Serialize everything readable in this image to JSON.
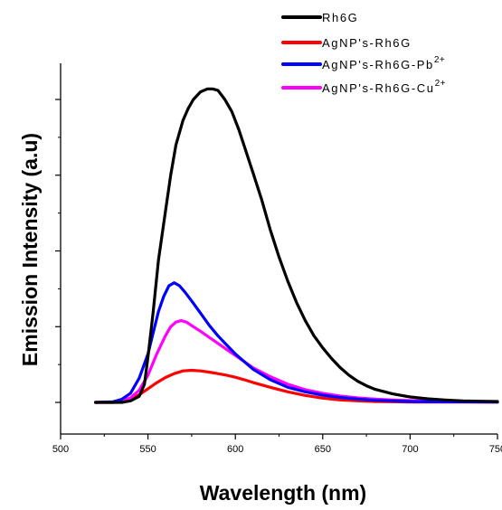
{
  "chart_data": {
    "type": "line",
    "title": "",
    "xlabel": "Wavelength (nm)",
    "ylabel": "Emission Intensity (a.u)",
    "xlim": [
      500,
      750
    ],
    "ylim": [
      0,
      1.05
    ],
    "xticks": [
      500,
      550,
      600,
      650,
      700,
      750
    ],
    "xtick_labels": [
      "500",
      "550",
      "600",
      "650",
      "700",
      "750"
    ],
    "yticks": [
      0,
      0.25,
      0.5,
      0.75,
      1.0
    ],
    "ytick_labels_visible": false,
    "grid": false,
    "legend_position": "top-right",
    "series": [
      {
        "name": "Rh6G",
        "color": "#000000",
        "x": [
          520,
          530,
          535,
          540,
          545,
          548,
          550,
          553,
          556,
          560,
          563,
          566,
          570,
          573,
          576,
          580,
          584,
          587,
          590,
          594,
          598,
          602,
          606,
          610,
          615,
          620,
          625,
          630,
          635,
          640,
          645,
          650,
          655,
          660,
          665,
          670,
          675,
          680,
          690,
          700,
          710,
          720,
          730,
          740,
          750
        ],
        "y": [
          0.0,
          0.0,
          0.0,
          0.005,
          0.02,
          0.06,
          0.15,
          0.3,
          0.47,
          0.63,
          0.75,
          0.85,
          0.93,
          0.97,
          1.0,
          1.025,
          1.035,
          1.035,
          1.03,
          1.0,
          0.96,
          0.9,
          0.83,
          0.76,
          0.67,
          0.57,
          0.48,
          0.4,
          0.33,
          0.27,
          0.22,
          0.18,
          0.145,
          0.115,
          0.09,
          0.07,
          0.055,
          0.043,
          0.028,
          0.018,
          0.012,
          0.008,
          0.005,
          0.004,
          0.003
        ]
      },
      {
        "name": "AgNP's-Rh6G",
        "color": "#ff0000",
        "x": [
          520,
          530,
          535,
          540,
          545,
          550,
          555,
          560,
          565,
          570,
          575,
          580,
          585,
          590,
          595,
          600,
          605,
          610,
          620,
          630,
          640,
          650,
          660,
          670,
          680,
          690,
          700,
          720,
          750
        ],
        "y": [
          0.0,
          0.0,
          0.003,
          0.01,
          0.025,
          0.045,
          0.065,
          0.082,
          0.095,
          0.104,
          0.106,
          0.104,
          0.1,
          0.095,
          0.09,
          0.083,
          0.075,
          0.066,
          0.05,
          0.035,
          0.023,
          0.014,
          0.008,
          0.005,
          0.003,
          0.002,
          0.001,
          0.001,
          0.001
        ]
      },
      {
        "name": "AgNP's-Rh6G-Pb",
        "superscript": "2+",
        "color": "#0000ff",
        "x": [
          520,
          530,
          535,
          540,
          545,
          550,
          553,
          556,
          559,
          562,
          565,
          568,
          571,
          575,
          580,
          585,
          590,
          595,
          600,
          605,
          610,
          620,
          630,
          640,
          650,
          660,
          670,
          680,
          690,
          700,
          720,
          750
        ],
        "y": [
          0.0,
          0.002,
          0.01,
          0.03,
          0.08,
          0.16,
          0.23,
          0.3,
          0.35,
          0.385,
          0.395,
          0.385,
          0.365,
          0.335,
          0.295,
          0.255,
          0.22,
          0.19,
          0.16,
          0.135,
          0.11,
          0.075,
          0.05,
          0.035,
          0.024,
          0.016,
          0.011,
          0.007,
          0.005,
          0.003,
          0.002,
          0.001
        ]
      },
      {
        "name": "AgNP's-Rh6G-Cu",
        "superscript": "2+",
        "color": "#ff00ff",
        "x": [
          520,
          530,
          535,
          540,
          545,
          550,
          555,
          560,
          563,
          566,
          569,
          572,
          576,
          580,
          585,
          590,
          595,
          600,
          605,
          610,
          620,
          630,
          640,
          650,
          660,
          670,
          680,
          690,
          700,
          720,
          750
        ],
        "y": [
          0.0,
          0.0,
          0.005,
          0.015,
          0.04,
          0.09,
          0.16,
          0.22,
          0.25,
          0.265,
          0.27,
          0.265,
          0.25,
          0.235,
          0.215,
          0.195,
          0.175,
          0.155,
          0.135,
          0.115,
          0.085,
          0.06,
          0.042,
          0.03,
          0.021,
          0.015,
          0.011,
          0.008,
          0.006,
          0.003,
          0.002
        ]
      }
    ]
  }
}
